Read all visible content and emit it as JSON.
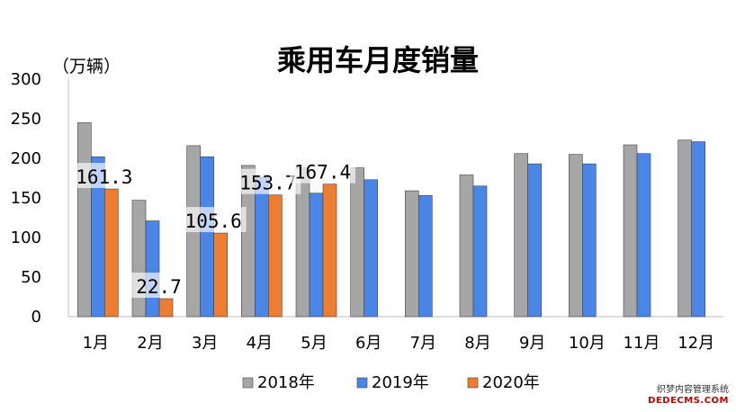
{
  "chart_data": {
    "type": "bar",
    "title": "乘用车月度销量",
    "ylabel": "（万辆）",
    "xlabel": "",
    "ylim": [
      0,
      300
    ],
    "yticks": [
      0,
      50,
      100,
      150,
      200,
      250,
      300
    ],
    "categories": [
      "1月",
      "2月",
      "3月",
      "4月",
      "5月",
      "6月",
      "7月",
      "8月",
      "9月",
      "10月",
      "11月",
      "12月"
    ],
    "series": [
      {
        "name": "2018年",
        "color": "#a6a6a6",
        "values": [
          245,
          147,
          216,
          191,
          188,
          188,
          159,
          179,
          206,
          205,
          217,
          223
        ]
      },
      {
        "name": "2019年",
        "color": "#4a86e8",
        "values": [
          202,
          121,
          202,
          176,
          156,
          173,
          153,
          165,
          193,
          193,
          206,
          221
        ]
      },
      {
        "name": "2020年",
        "color": "#ed7d31",
        "values": [
          161.3,
          22.7,
          105.6,
          153.7,
          167.4,
          null,
          null,
          null,
          null,
          null,
          null,
          null
        ]
      }
    ],
    "data_labels": [
      {
        "series": 2,
        "index": 0,
        "text": "161.3"
      },
      {
        "series": 2,
        "index": 1,
        "text": "22.7"
      },
      {
        "series": 2,
        "index": 2,
        "text": "105.6"
      },
      {
        "series": 2,
        "index": 3,
        "text": "153.7"
      },
      {
        "series": 2,
        "index": 4,
        "text": "167.4"
      }
    ],
    "legend_position": "bottom",
    "grid": false
  },
  "watermark": {
    "line1": "织梦内容管理系统",
    "line2": "DEDECMS.COM"
  }
}
